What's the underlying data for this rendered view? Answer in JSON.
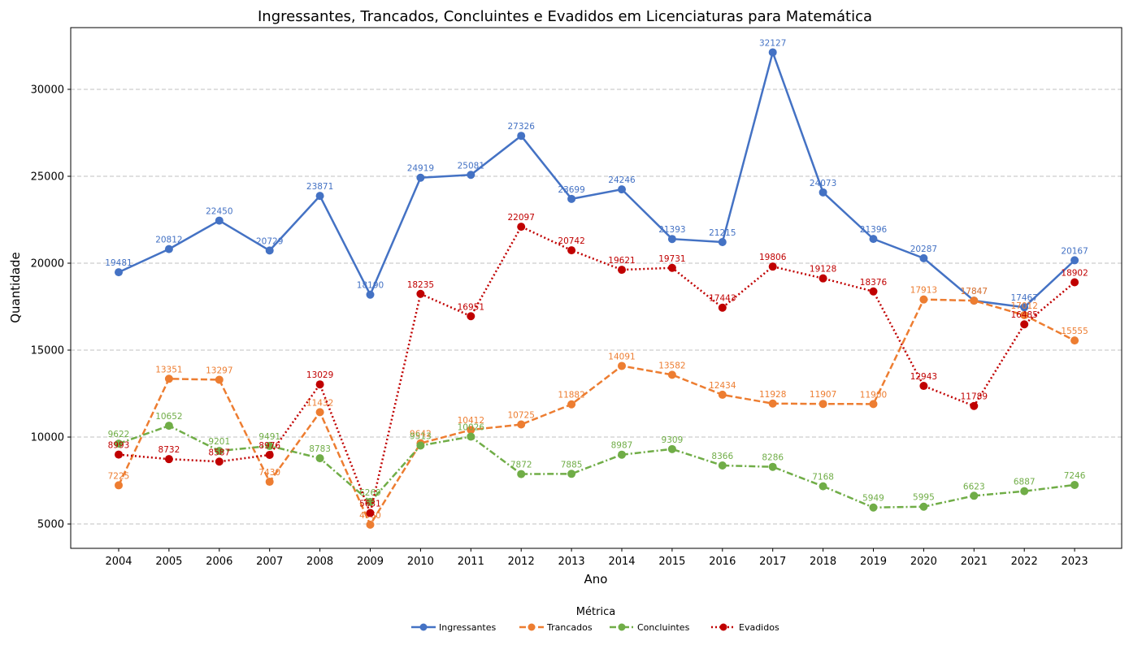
{
  "chart_data": {
    "type": "line",
    "title": "Ingressantes, Trancados, Concluintes e Evadidos em Licenciaturas para Matemática",
    "xlabel": "Ano",
    "ylabel": "Quantidade",
    "x": [
      "2004",
      "2005",
      "2006",
      "2007",
      "2008",
      "2009",
      "2010",
      "2011",
      "2012",
      "2013",
      "2014",
      "2015",
      "2016",
      "2017",
      "2018",
      "2019",
      "2020",
      "2021",
      "2022",
      "2023"
    ],
    "ylim": [
      3600,
      33550
    ],
    "yticks": [
      5000,
      10000,
      15000,
      20000,
      25000,
      30000
    ],
    "grid": "horizontal dashed",
    "legend_title": "Métrica",
    "legend_position": "bottom-center",
    "series": [
      {
        "name": "Ingressantes",
        "color": "#4472c4",
        "line_style": "solid",
        "values": [
          19481,
          20812,
          22450,
          20729,
          23871,
          18190,
          24919,
          25081,
          27326,
          23699,
          24246,
          21393,
          21215,
          32127,
          24073,
          21396,
          20287,
          17847,
          17467,
          20167
        ]
      },
      {
        "name": "Trancados",
        "color": "#ed7d31",
        "line_style": "dashed",
        "values": [
          7225,
          13351,
          13297,
          7430,
          11432,
          4960,
          9642,
          10412,
          10725,
          11882,
          14091,
          13582,
          12434,
          11928,
          11907,
          11900,
          17913,
          17847,
          17012,
          15555
        ]
      },
      {
        "name": "Concluintes",
        "color": "#70ad47",
        "line_style": "dashdot",
        "values": [
          9622,
          10652,
          9201,
          9491,
          8783,
          6269,
          9513,
          10026,
          7872,
          7885,
          8987,
          9309,
          8366,
          8286,
          7168,
          5949,
          5995,
          6623,
          6887,
          7246
        ]
      },
      {
        "name": "Evadidos",
        "color": "#c00000",
        "line_style": "dotted",
        "values": [
          8993,
          8732,
          8587,
          8976,
          13029,
          5631,
          18235,
          16951,
          22097,
          20742,
          19621,
          19731,
          17443,
          19806,
          19128,
          18376,
          12943,
          11789,
          16485,
          18902
        ]
      }
    ]
  }
}
